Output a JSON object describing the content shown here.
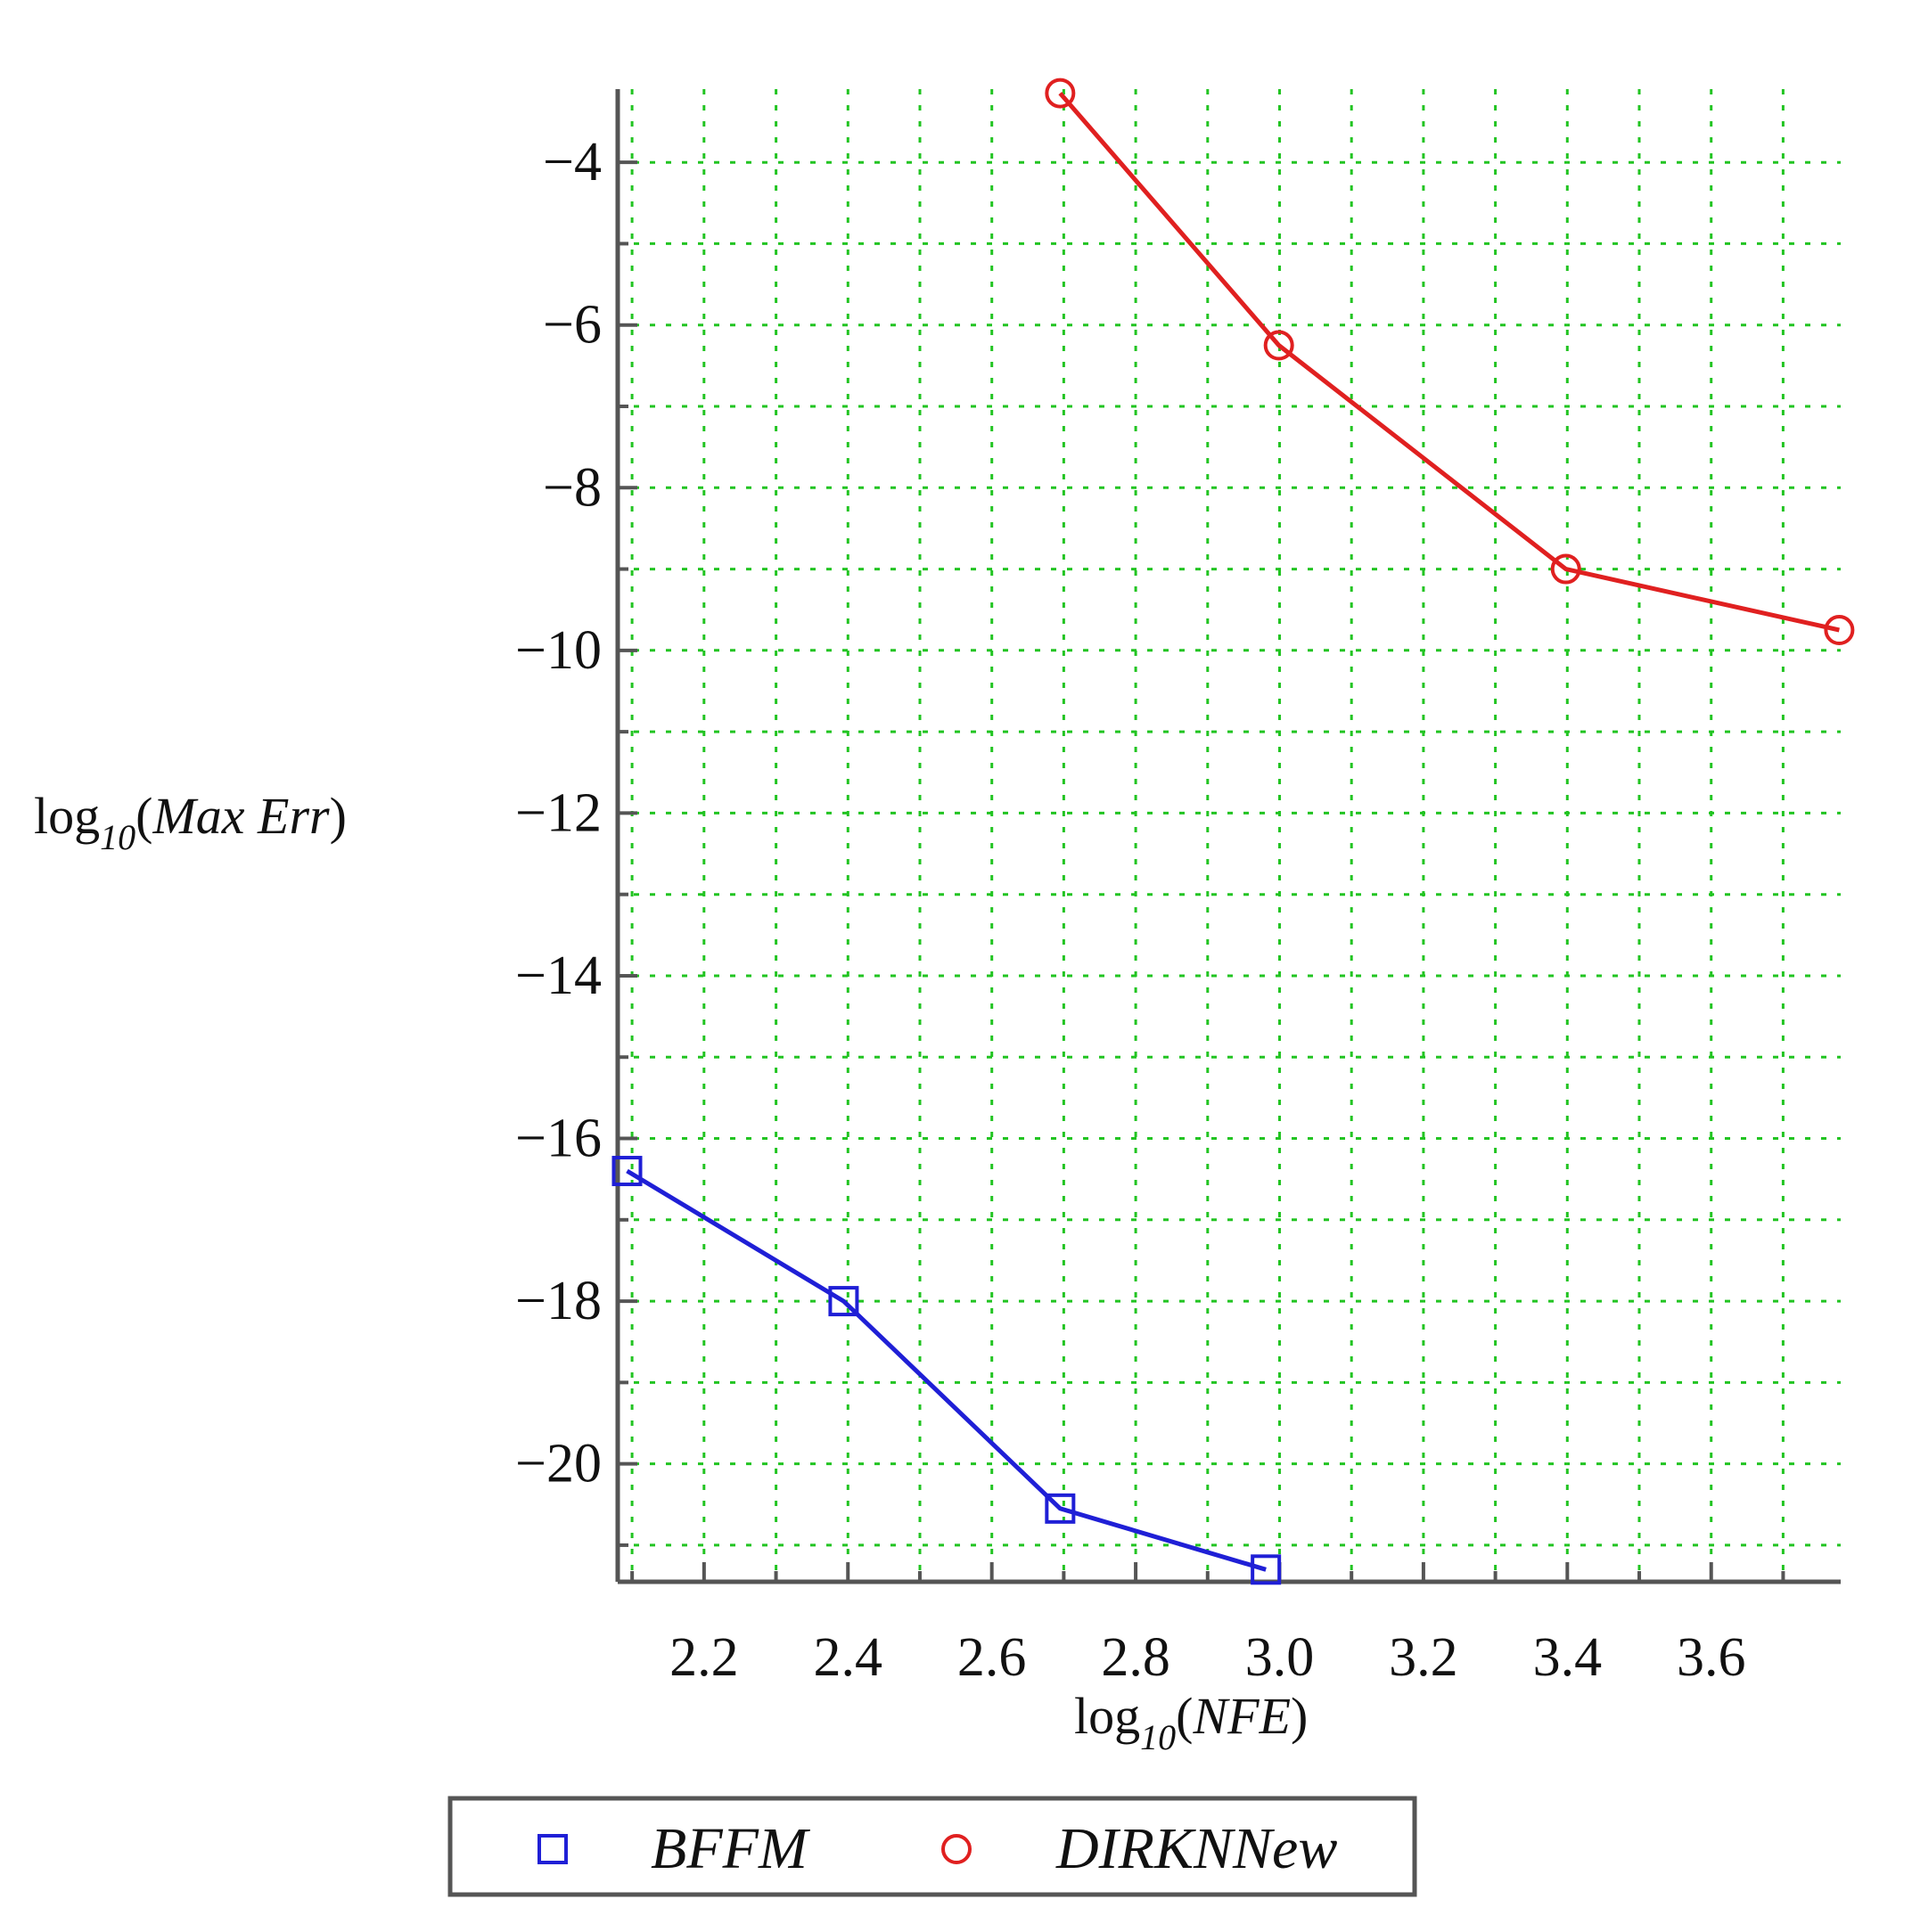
{
  "chart_data": {
    "type": "line",
    "xlabel": {
      "prefix": "log",
      "sub": "10",
      "open": "(",
      "var": "NFE",
      "close": ")"
    },
    "ylabel": {
      "prefix": "log",
      "sub": "10",
      "open": "(",
      "var": "Max Err",
      "close": ")"
    },
    "xlim": [
      2.08,
      3.78
    ],
    "ylim": [
      -21.45,
      -3.1
    ],
    "x_ticks": [
      {
        "value": 2.2,
        "label": "2.2"
      },
      {
        "value": 2.4,
        "label": "2.4"
      },
      {
        "value": 2.6,
        "label": "2.6"
      },
      {
        "value": 2.8,
        "label": "2.8"
      },
      {
        "value": 3.0,
        "label": "3.0"
      },
      {
        "value": 3.2,
        "label": "3.2"
      },
      {
        "value": 3.4,
        "label": "3.4"
      },
      {
        "value": 3.6,
        "label": "3.6"
      }
    ],
    "y_ticks": [
      {
        "value": -4,
        "label": "−4"
      },
      {
        "value": -6,
        "label": "−6"
      },
      {
        "value": -8,
        "label": "−8"
      },
      {
        "value": -10,
        "label": "−10"
      },
      {
        "value": -12,
        "label": "−12"
      },
      {
        "value": -14,
        "label": "−14"
      },
      {
        "value": -16,
        "label": "−16"
      },
      {
        "value": -18,
        "label": "−18"
      },
      {
        "value": -20,
        "label": "−20"
      }
    ],
    "grid": true,
    "legend_position": "bottom",
    "series": [
      {
        "name": "BFFM",
        "color": "#1f1fd6",
        "marker": "square",
        "x": [
          2.093,
          2.394,
          2.695,
          2.981
        ],
        "y": [
          -16.4,
          -18.0,
          -20.55,
          -21.3
        ]
      },
      {
        "name": "DIRKNNew",
        "color": "#e02020",
        "marker": "circle",
        "x": [
          2.695,
          2.999,
          3.398,
          3.778
        ],
        "y": [
          -3.15,
          -6.25,
          -9.0,
          -9.75
        ]
      }
    ]
  }
}
